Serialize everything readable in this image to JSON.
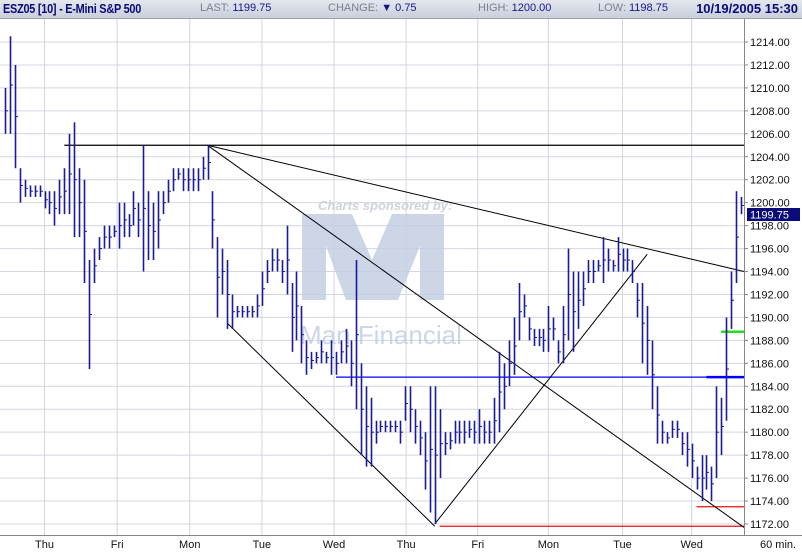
{
  "header": {
    "title": "ESZ05 [10] - E-Mini S&P 500",
    "last_label": "LAST:",
    "last_value": "1199.75",
    "change_label": "CHANGE:",
    "change_icon": "triangle-down-icon",
    "change_value": "0.75",
    "high_label": "HIGH:",
    "high_value": "1200.00",
    "low_label": "LOW:",
    "low_value": "1198.75",
    "datetime": "10/19/2005 15:30"
  },
  "watermark": {
    "sponsor_text": "Charts sponsored by:",
    "brand": "Man Financial"
  },
  "chart_data": {
    "type": "bar",
    "subtype": "ohlc-high-low",
    "interval_label": "60 min.",
    "ylim": [
      1171,
      1216
    ],
    "y_ticks": [
      "1214.00",
      "1212.00",
      "1210.00",
      "1208.00",
      "1206.00",
      "1204.00",
      "1202.00",
      "1200.00",
      "1198.00",
      "1196.00",
      "1194.00",
      "1192.00",
      "1190.00",
      "1188.00",
      "1186.00",
      "1184.00",
      "1182.00",
      "1180.00",
      "1178.00",
      "1176.00",
      "1174.00",
      "1172.00"
    ],
    "last_price_tag": "1199.75",
    "grid": true,
    "colors": {
      "bars": "#1a1a9a",
      "price_tag": "#0a0a78",
      "trendline": "#000000",
      "support_blue": "#0000ff",
      "support_green": "#22dd22",
      "support_red": "#ee1111"
    },
    "day_ticks": [
      {
        "label": "Thu",
        "bar": 8
      },
      {
        "label": "Fri",
        "bar": 22.7
      },
      {
        "label": "Mon",
        "bar": 37.4
      },
      {
        "label": "Tue",
        "bar": 52
      },
      {
        "label": "Wed",
        "bar": 66.6
      },
      {
        "label": "Thu",
        "bar": 81.2
      },
      {
        "label": "Fri",
        "bar": 95.7
      },
      {
        "label": "Mon",
        "bar": 110
      },
      {
        "label": "Tue",
        "bar": 125
      },
      {
        "label": "Wed",
        "bar": 139
      }
    ],
    "bars_high_low": [
      [
        1210,
        1206
      ],
      [
        1214.5,
        1206
      ],
      [
        1212,
        1203
      ],
      [
        1203,
        1200
      ],
      [
        1202,
        1200.5
      ],
      [
        1201.5,
        1200.5
      ],
      [
        1201.5,
        1200.5
      ],
      [
        1201.5,
        1200.5
      ],
      [
        1201,
        1199.5
      ],
      [
        1201,
        1199
      ],
      [
        1201,
        1198
      ],
      [
        1202,
        1199
      ],
      [
        1203,
        1199
      ],
      [
        1206,
        1199
      ],
      [
        1207,
        1197
      ],
      [
        1203,
        1197
      ],
      [
        1202,
        1193
      ],
      [
        1195,
        1185.5
      ],
      [
        1196,
        1193
      ],
      [
        1197,
        1195
      ],
      [
        1198,
        1196
      ],
      [
        1198,
        1196
      ],
      [
        1198,
        1197
      ],
      [
        1200,
        1196
      ],
      [
        1200,
        1197
      ],
      [
        1199,
        1197
      ],
      [
        1201,
        1198
      ],
      [
        1200,
        1197
      ],
      [
        1205,
        1194
      ],
      [
        1201,
        1195
      ],
      [
        1200,
        1195
      ],
      [
        1201,
        1196
      ],
      [
        1201,
        1199
      ],
      [
        1202,
        1200
      ],
      [
        1203,
        1201
      ],
      [
        1203,
        1202
      ],
      [
        1203,
        1201
      ],
      [
        1203,
        1201
      ],
      [
        1203,
        1201
      ],
      [
        1203,
        1201
      ],
      [
        1204,
        1202
      ],
      [
        1205,
        1202
      ],
      [
        1201,
        1196
      ],
      [
        1197,
        1190
      ],
      [
        1196,
        1192
      ],
      [
        1195,
        1189
      ],
      [
        1192,
        1189
      ],
      [
        1191,
        1190
      ],
      [
        1191,
        1190
      ],
      [
        1191,
        1190
      ],
      [
        1191,
        1190
      ],
      [
        1192,
        1190
      ],
      [
        1194,
        1191
      ],
      [
        1195,
        1193
      ],
      [
        1196,
        1194
      ],
      [
        1196,
        1194
      ],
      [
        1195,
        1193
      ],
      [
        1198,
        1192
      ],
      [
        1193,
        1187
      ],
      [
        1194,
        1188
      ],
      [
        1191,
        1186
      ],
      [
        1188,
        1185
      ],
      [
        1187,
        1185.5
      ],
      [
        1187,
        1186
      ],
      [
        1188,
        1186
      ],
      [
        1187,
        1186
      ],
      [
        1188,
        1185
      ],
      [
        1187,
        1185
      ],
      [
        1188,
        1186
      ],
      [
        1189,
        1186
      ],
      [
        1188,
        1184
      ],
      [
        1195,
        1182
      ],
      [
        1186,
        1178
      ],
      [
        1184,
        1177
      ],
      [
        1183,
        1177
      ],
      [
        1181,
        1179
      ],
      [
        1181,
        1180
      ],
      [
        1181,
        1180
      ],
      [
        1181,
        1180
      ],
      [
        1181,
        1180
      ],
      [
        1181,
        1179
      ],
      [
        1184,
        1181
      ],
      [
        1184,
        1180
      ],
      [
        1182,
        1179
      ],
      [
        1181,
        1178
      ],
      [
        1180,
        1175
      ],
      [
        1184,
        1173
      ],
      [
        1184,
        1172
      ],
      [
        1182,
        1176
      ],
      [
        1180,
        1178
      ],
      [
        1180,
        1178.5
      ],
      [
        1181,
        1179
      ],
      [
        1181,
        1179
      ],
      [
        1181,
        1179
      ],
      [
        1181,
        1179.5
      ],
      [
        1181,
        1179
      ],
      [
        1182,
        1179
      ],
      [
        1181,
        1179
      ],
      [
        1181,
        1179
      ],
      [
        1183,
        1179
      ],
      [
        1187,
        1180
      ],
      [
        1186,
        1182
      ],
      [
        1188,
        1184
      ],
      [
        1190,
        1185
      ],
      [
        1193,
        1188
      ],
      [
        1192,
        1190
      ],
      [
        1190,
        1188
      ],
      [
        1189,
        1187.5
      ],
      [
        1189,
        1187.5
      ],
      [
        1189,
        1187
      ],
      [
        1191,
        1187
      ],
      [
        1190,
        1188
      ],
      [
        1188,
        1186
      ],
      [
        1191,
        1186
      ],
      [
        1196,
        1188
      ],
      [
        1194,
        1187
      ],
      [
        1194,
        1189
      ],
      [
        1194,
        1191
      ],
      [
        1195,
        1193
      ],
      [
        1195,
        1193
      ],
      [
        1195,
        1194
      ],
      [
        1197,
        1193
      ],
      [
        1196,
        1194
      ],
      [
        1195,
        1194
      ],
      [
        1197,
        1194
      ],
      [
        1196,
        1194
      ],
      [
        1196,
        1194
      ],
      [
        1195,
        1193
      ],
      [
        1193,
        1190
      ],
      [
        1193,
        1186
      ],
      [
        1191,
        1185
      ],
      [
        1188,
        1182
      ],
      [
        1184,
        1179
      ],
      [
        1181,
        1179
      ],
      [
        1180,
        1179
      ],
      [
        1181,
        1179.5
      ],
      [
        1181,
        1179.5
      ],
      [
        1180,
        1178
      ],
      [
        1180,
        1177
      ],
      [
        1179,
        1176
      ],
      [
        1177,
        1175
      ],
      [
        1178,
        1174
      ],
      [
        1178,
        1175
      ],
      [
        1177,
        1174
      ],
      [
        1184,
        1176
      ],
      [
        1183,
        1178
      ],
      [
        1190,
        1181
      ],
      [
        1194,
        1189
      ],
      [
        1201,
        1193
      ],
      [
        1200.5,
        1199
      ]
    ],
    "trendlines": [
      {
        "from": {
          "bar": 41,
          "price": 1205
        },
        "to": {
          "bar": 149.6,
          "price": 1194
        },
        "color": "#000000"
      },
      {
        "from": {
          "bar": 41,
          "price": 1205
        },
        "to": {
          "bar": 149.6,
          "price": 1171.7
        },
        "color": "#000000"
      },
      {
        "from": {
          "bar": 45,
          "price": 1189.5
        },
        "to": {
          "bar": 87,
          "price": 1171.8
        },
        "color": "#000000"
      },
      {
        "from": {
          "bar": 87,
          "price": 1172
        },
        "to": {
          "bar": 130,
          "price": 1195.5
        },
        "color": "#000000"
      }
    ],
    "horizontal_levels": [
      {
        "price": 1205,
        "from_bar": 12,
        "color": "#000000"
      },
      {
        "price": 1184.8,
        "from_bar": 67,
        "color": "#0000ff"
      },
      {
        "price": 1188.75,
        "from_bar": 145,
        "color": "#22dd22"
      },
      {
        "price": 1173.5,
        "from_bar": 140,
        "color": "#ee1111"
      },
      {
        "price": 1171.8,
        "from_bar": 88,
        "color": "#ee1111"
      }
    ]
  }
}
